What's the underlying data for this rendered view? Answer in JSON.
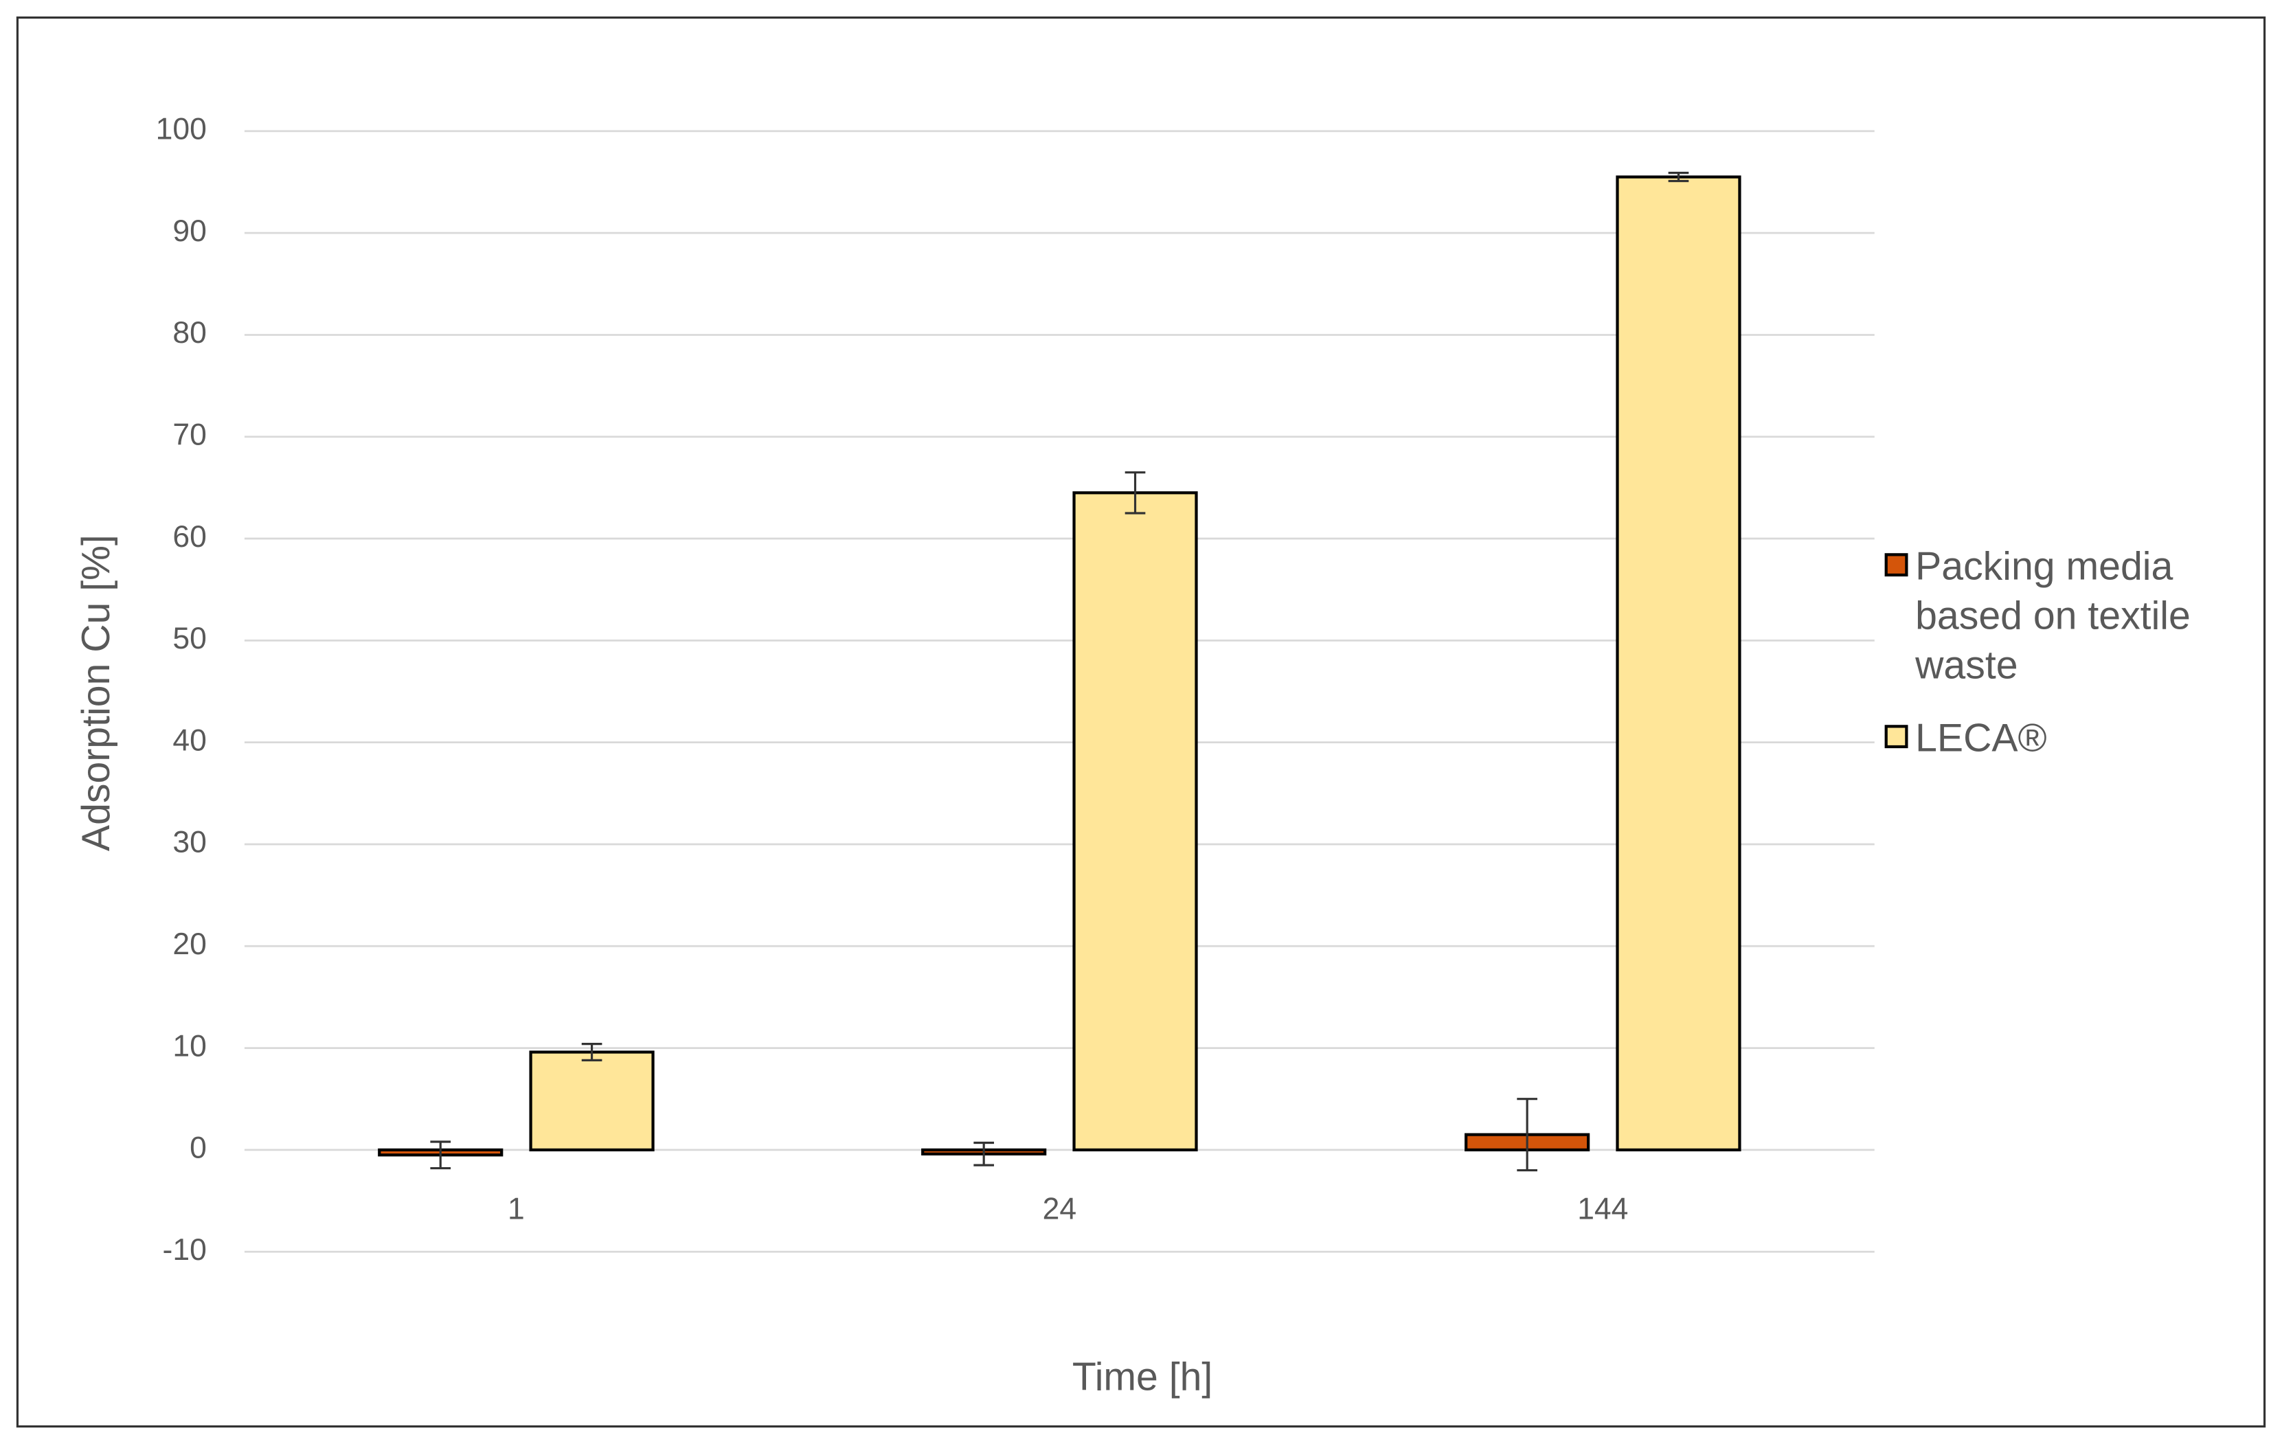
{
  "chart_data": {
    "type": "bar",
    "x_label": "Time [h]",
    "y_label": "Adsorption Cu [%]",
    "categories": [
      "1",
      "24",
      "144"
    ],
    "series": [
      {
        "name": "Packing media based on textile waste",
        "color": "#d4550a",
        "values": [
          -0.5,
          -0.4,
          1.5
        ],
        "errors": [
          1.3,
          1.1,
          3.5
        ]
      },
      {
        "name": "LECA®",
        "color": "#ffe699",
        "values": [
          9.6,
          64.5,
          95.5
        ],
        "errors": [
          0.8,
          2.0,
          0.4
        ]
      }
    ],
    "ylim": [
      -10,
      100
    ],
    "yticks": [
      -10,
      0,
      10,
      20,
      30,
      40,
      50,
      60,
      70,
      80,
      90,
      100
    ],
    "grid": true,
    "legend": "right"
  }
}
